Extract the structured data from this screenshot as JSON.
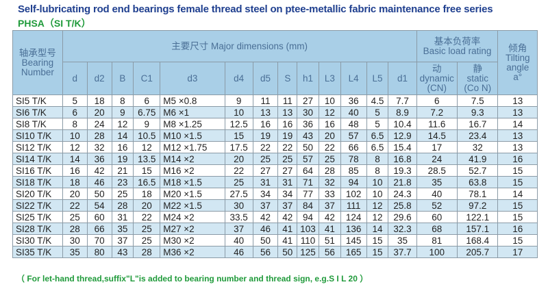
{
  "title": "Self-lubricating rod end bearings female thread steel on ptee-metallic fabric maintenance free series",
  "subtitle": "PHSA（SI  T/K）",
  "header": {
    "bearing_cn": "轴承型号",
    "bearing_en1": "Bearing",
    "bearing_en2": "Number",
    "dims": "主要尺寸  Major dimensions (mm)",
    "load_cn": "基本负荷率",
    "load_en": "Basic load rating",
    "tilt_cn": "倾角",
    "tilt_en1": "Tilting",
    "tilt_en2": "angle",
    "tilt_en3": "a°",
    "dim_cols": [
      "d",
      "d2",
      "B",
      "C1",
      "d3",
      "d4",
      "d5",
      "S",
      "h1",
      "L3",
      "L4",
      "L5",
      "d1"
    ],
    "dyn_cn": "动",
    "dyn_en": "dynamic",
    "dyn_unit": "(CN)",
    "sta_cn": "静",
    "sta_en": "static",
    "sta_unit": "(Co N)"
  },
  "rows": [
    [
      "SI5 T/K",
      "5",
      "18",
      "8",
      "6",
      "M5 ×0.8",
      "9",
      "11",
      "11",
      "27",
      "10",
      "36",
      "4.5",
      "7.7",
      "6",
      "7.5",
      "13"
    ],
    [
      "SI6 T/K",
      "6",
      "20",
      "9",
      "6.75",
      "M6 ×1",
      "10",
      "13",
      "13",
      "30",
      "12",
      "40",
      "5",
      "8.9",
      "7.2",
      "9.3",
      "13"
    ],
    [
      "SI8 T/K",
      "8",
      "24",
      "12",
      "9",
      "M8 ×1.25",
      "12.5",
      "16",
      "16",
      "36",
      "16",
      "48",
      "5",
      "10.4",
      "11.6",
      "16.7",
      "14"
    ],
    [
      "SI10 T/K",
      "10",
      "28",
      "14",
      "10.5",
      "M10 ×1.5",
      "15",
      "19",
      "19",
      "43",
      "20",
      "57",
      "6.5",
      "12.9",
      "14.5",
      "23.4",
      "13"
    ],
    [
      "SI12 T/K",
      "12",
      "32",
      "16",
      "12",
      "M12 ×1.75",
      "17.5",
      "22",
      "22",
      "50",
      "22",
      "66",
      "6.5",
      "15.4",
      "17",
      "32",
      "13"
    ],
    [
      "SI14 T/K",
      "14",
      "36",
      "19",
      "13.5",
      "M14 ×2",
      "20",
      "25",
      "25",
      "57",
      "25",
      "78",
      "8",
      "16.8",
      "24",
      "41.9",
      "16"
    ],
    [
      "SI16 T/K",
      "16",
      "42",
      "21",
      "15",
      "M16 ×2",
      "22",
      "27",
      "27",
      "64",
      "28",
      "85",
      "8",
      "19.3",
      "28.5",
      "52.7",
      "15"
    ],
    [
      "SI18 T/K",
      "18",
      "46",
      "23",
      "16.5",
      "M18 ×1.5",
      "25",
      "31",
      "31",
      "71",
      "32",
      "94",
      "10",
      "21.8",
      "35",
      "63.8",
      "15"
    ],
    [
      "SI20 T/K",
      "20",
      "50",
      "25",
      "18",
      "M20 ×1.5",
      "27.5",
      "34",
      "34",
      "77",
      "33",
      "102",
      "10",
      "24.3",
      "40",
      "78.1",
      "14"
    ],
    [
      "SI22 T/K",
      "22",
      "54",
      "28",
      "20",
      "M22 ×1.5",
      "30",
      "37",
      "37",
      "84",
      "37",
      "111",
      "12",
      "25.8",
      "52",
      "97.2",
      "15"
    ],
    [
      "SI25 T/K",
      "25",
      "60",
      "31",
      "22",
      "M24 ×2",
      "33.5",
      "42",
      "42",
      "94",
      "42",
      "124",
      "12",
      "29.6",
      "60",
      "122.1",
      "15"
    ],
    [
      "SI28 T/K",
      "28",
      "66",
      "35",
      "25",
      "M27 ×2",
      "37",
      "46",
      "41",
      "103",
      "41",
      "136",
      "14",
      "32.3",
      "68",
      "157.1",
      "16"
    ],
    [
      "SI30 T/K",
      "30",
      "70",
      "37",
      "25",
      "M30 ×2",
      "40",
      "50",
      "41",
      "110",
      "51",
      "145",
      "15",
      "35",
      "81",
      "168.4",
      "15"
    ],
    [
      "SI35 T/K",
      "35",
      "80",
      "43",
      "28",
      "M36 ×2",
      "46",
      "56",
      "50",
      "125",
      "56",
      "165",
      "15",
      "37.7",
      "100",
      "205.7",
      "17"
    ]
  ],
  "note": "（ For let-hand thread,suffix\"L\"is added to bearing number and  thread sign, e.g.S I L 20  ）"
}
